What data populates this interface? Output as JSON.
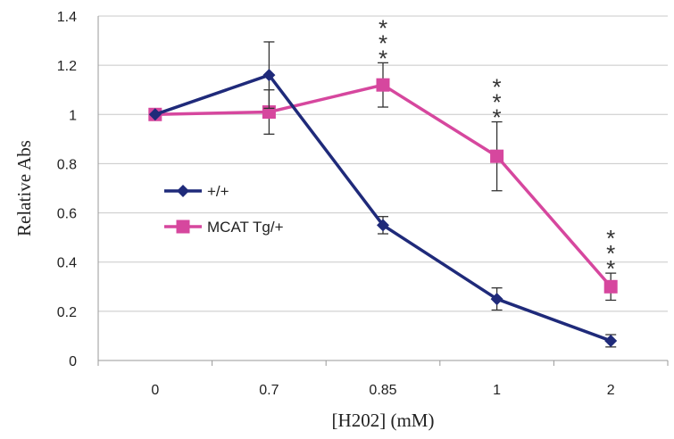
{
  "chart_data": {
    "type": "line",
    "categories": [
      "0",
      "0.7",
      "0.85",
      "1",
      "2"
    ],
    "xlabel": "[H202] (mM)",
    "ylabel": "Relative Abs",
    "ylim": [
      0,
      1.4
    ],
    "yticks": [
      "0",
      "0.2",
      "0.4",
      "0.6",
      "0.8",
      "1",
      "1.2",
      "1.4"
    ],
    "grid": "horizontal",
    "legend": "left",
    "series": [
      {
        "name": "+/+",
        "color": "#1f2a7a",
        "marker": "diamond",
        "values": [
          1.0,
          1.16,
          0.55,
          0.25,
          0.08
        ],
        "errors": [
          0.0,
          0.135,
          0.035,
          0.045,
          0.025
        ]
      },
      {
        "name": "MCAT Tg/+",
        "color": "#d6479e",
        "marker": "square",
        "values": [
          1.0,
          1.01,
          1.12,
          0.83,
          0.3
        ],
        "errors": [
          0.0,
          0.09,
          0.09,
          0.14,
          0.055
        ]
      }
    ],
    "annotations": [
      {
        "category": "0.85",
        "text": "***"
      },
      {
        "category": "1",
        "text": "***"
      },
      {
        "category": "2",
        "text": "***"
      }
    ]
  }
}
